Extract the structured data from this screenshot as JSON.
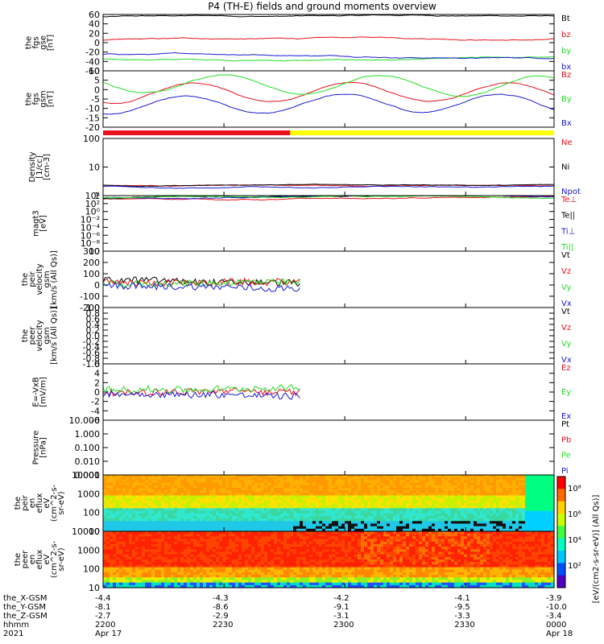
{
  "title": "P4 (TH-E) fields and ground moments overview",
  "colors": {
    "black": "#000000",
    "red": "#e8121c",
    "green": "#22dd22",
    "blue": "#1a1ad2",
    "yellow": "#ffff00",
    "white": "#ffffff"
  },
  "x_axis": {
    "ticks": [
      "2200",
      "2230",
      "2300",
      "2330",
      "0000"
    ],
    "row_labels": [
      "the_X-GSM",
      "the_Y-GSM",
      "the_Z-GSM",
      "hhmm",
      "2021"
    ],
    "rows": [
      [
        "-4.4",
        "-4.3",
        "-4.2",
        "-4.1",
        "-3.9"
      ],
      [
        "-8.1",
        "-8.6",
        "-9.1",
        "-9.5",
        "-10.0"
      ],
      [
        "-2.7",
        "-2.9",
        "-3.1",
        "-3.3",
        "-3.4"
      ],
      [
        "2200",
        "2230",
        "2300",
        "2330",
        "0000"
      ],
      [
        "Apr 17",
        "",
        "",
        "",
        "Apr 18"
      ]
    ]
  },
  "colorbar_label": "[eV/(cm2-s-sr-eV)] (All Qs)]",
  "colorbar_ticks": [
    "10⁸",
    "10⁶",
    "10⁴",
    "10²"
  ],
  "spec_axes": {
    "ticks": [
      "10000",
      "1000",
      "100",
      "10"
    ]
  },
  "mode_bar": {
    "segments": [
      {
        "from": 0.0,
        "to": 0.415,
        "color": "red"
      },
      {
        "from": 0.415,
        "to": 1.0,
        "color": "yellow"
      }
    ]
  },
  "chart_data": [
    {
      "type": "line",
      "ylabel": [
        "the",
        "fgs",
        "gse",
        "[nT]"
      ],
      "yticks": [
        "60",
        "40",
        "20",
        "0",
        "-20",
        "-40",
        "-60"
      ],
      "ylim": [
        -60,
        60
      ],
      "series": [
        {
          "name": "Bt",
          "color": "black",
          "level": 55
        },
        {
          "name": "bz",
          "color": "red",
          "level": 5
        },
        {
          "name": "by",
          "color": "green",
          "level": -35
        },
        {
          "name": "bx",
          "color": "blue",
          "level": -25
        }
      ]
    },
    {
      "type": "line",
      "ylabel": [
        "the",
        "fgs",
        "gsm",
        "[nT]"
      ],
      "yticks": [
        "10",
        "5",
        "0",
        "-5",
        "-10",
        "-15",
        "-20"
      ],
      "ylim": [
        -20,
        10
      ],
      "series": [
        {
          "name": "Bz",
          "color": "red",
          "level": -2
        },
        {
          "name": "By",
          "color": "green",
          "level": 3
        },
        {
          "name": "Bx",
          "color": "blue",
          "level": -8
        }
      ]
    },
    {
      "type": "line",
      "ylabel": [
        "Density",
        "[1/cc]",
        "[cm-3]"
      ],
      "yticks": [
        "100",
        "10",
        "1"
      ],
      "ylim": [
        0.1,
        200
      ],
      "log": true,
      "series": [
        {
          "name": "Ne",
          "color": "red",
          "level": 0.4
        },
        {
          "name": "Ni",
          "color": "black",
          "level": 0.4
        },
        {
          "name": "Npot",
          "color": "blue",
          "level": 0.35
        }
      ]
    },
    {
      "type": "line",
      "ylabel": [
        "magt3",
        "[eV]"
      ],
      "yticks": [
        "10⁴",
        "10²",
        "10⁰",
        "10⁻²",
        "10⁻⁴",
        "10⁻⁶",
        "10⁻⁸",
        "10"
      ],
      "ylim": [
        -10,
        4.2
      ],
      "series": [
        {
          "name": "Te⊥",
          "color": "red",
          "level": 3.3
        },
        {
          "name": "Te||",
          "color": "black",
          "level": 3.5
        },
        {
          "name": "Ti⊥",
          "color": "blue",
          "level": 3.6
        },
        {
          "name": "Ti||",
          "color": "green",
          "level": 3.7
        }
      ]
    },
    {
      "type": "line",
      "ylabel": [
        "the",
        "peir",
        "velocity",
        "gsm",
        "[km/s (All Qs)]"
      ],
      "yticks": [
        "300",
        "200",
        "100",
        "0",
        "-100",
        "-200"
      ],
      "ylim": [
        -200,
        300
      ],
      "series": [
        {
          "name": "Vt",
          "color": "black",
          "level": 40
        },
        {
          "name": "Vz",
          "color": "red",
          "level": 20
        },
        {
          "name": "Vy",
          "color": "green",
          "level": 10
        },
        {
          "name": "Vx",
          "color": "blue",
          "level": 0
        }
      ]
    },
    {
      "type": "line",
      "ylabel": [
        "the",
        "peer",
        "velocity",
        "gsm",
        "[km/s (All Qs)]"
      ],
      "yticks": [
        "1.0",
        "0.8",
        "0.6",
        "0.4",
        "0.2",
        "0.0",
        "-0.2",
        "-0.4",
        "-0.6",
        "-0.8",
        "-1.0"
      ],
      "ylim": [
        -1,
        1
      ],
      "series": [
        {
          "name": "Vt",
          "color": "black",
          "level": null
        },
        {
          "name": "Vz",
          "color": "red",
          "level": null
        },
        {
          "name": "Vy",
          "color": "green",
          "level": null
        },
        {
          "name": "Vx",
          "color": "blue",
          "level": null
        }
      ]
    },
    {
      "type": "line",
      "ylabel": [
        "E=-VxB",
        "[mV/m]"
      ],
      "yticks": [
        "6",
        "4",
        "2",
        "0",
        "-2",
        "-4",
        "-6"
      ],
      "ylim": [
        -6,
        6
      ],
      "series": [
        {
          "name": "Ez",
          "color": "red",
          "level": 0
        },
        {
          "name": "Ey",
          "color": "green",
          "level": 0.5
        },
        {
          "name": "Ex",
          "color": "blue",
          "level": -0.3
        }
      ]
    },
    {
      "type": "line",
      "ylabel": [
        "Pressure",
        "[nPa]"
      ],
      "yticks": [
        "10.000",
        "1.000",
        "0.100",
        "0.010",
        "0.001"
      ],
      "ylim": [
        -3,
        1
      ],
      "log": true,
      "series": [
        {
          "name": "Pt",
          "color": "black",
          "level": 1.2
        },
        {
          "name": "Pb",
          "color": "red",
          "level": 1.1
        },
        {
          "name": "Pe",
          "color": "green",
          "level": 0.15
        },
        {
          "name": "Pi",
          "color": "blue",
          "level": 0.3
        }
      ]
    },
    {
      "type": "heatmap",
      "ylabel": [
        "the",
        "peir",
        "en",
        "eflux",
        "eV",
        "(cm^2-s-",
        "sr-eV)"
      ],
      "yticks": [
        "10000",
        "1000",
        "100",
        "10"
      ]
    },
    {
      "type": "heatmap",
      "ylabel": [
        "the",
        "peer",
        "en",
        "eflux",
        "eV",
        "(cm^2-s-",
        "sr-eV)"
      ],
      "yticks": [
        "10000",
        "1000",
        "100",
        "10"
      ]
    }
  ]
}
